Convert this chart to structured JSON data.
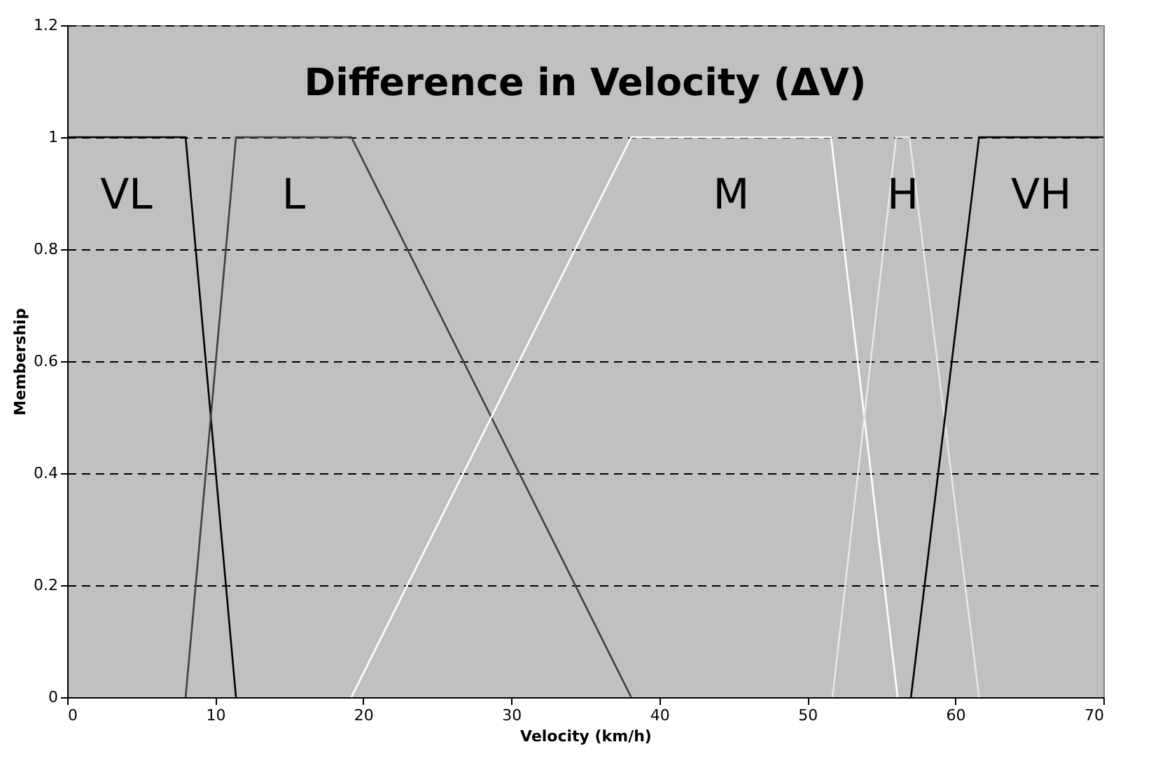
{
  "chart_data": {
    "type": "line",
    "title": "Difference in Velocity (ΔV)",
    "xlabel": "Velocity (km/h)",
    "ylabel": "Membership",
    "xlim": [
      0,
      70
    ],
    "xticks": [
      0,
      10,
      20,
      30,
      40,
      50,
      60,
      70
    ],
    "ylim": [
      0,
      1.2
    ],
    "yticks": [
      0,
      0.2,
      0.4,
      0.6,
      0.8,
      1,
      1.2
    ],
    "grid": "y",
    "marker": "none",
    "line_style": "solid",
    "series": [
      {
        "name": "VL",
        "color": "#000000",
        "x": [
          0,
          8,
          11.4
        ],
        "values": [
          1,
          1,
          0
        ]
      },
      {
        "name": "L",
        "color": "#404040",
        "x": [
          8,
          11.4,
          19.2,
          38.1
        ],
        "values": [
          0,
          1,
          1,
          0
        ]
      },
      {
        "name": "M",
        "color": "#ffffff",
        "x": [
          19.2,
          38.1,
          51.6,
          56.1
        ],
        "values": [
          0,
          1,
          1,
          0
        ]
      },
      {
        "name": "H",
        "color": "#e6e6e6",
        "x": [
          51.7,
          56,
          56.9,
          61.6
        ],
        "values": [
          0,
          1,
          1,
          0
        ]
      },
      {
        "name": "VH",
        "color": "#000000",
        "x": [
          57,
          61.6,
          70
        ],
        "values": [
          0,
          1,
          1
        ]
      }
    ]
  }
}
